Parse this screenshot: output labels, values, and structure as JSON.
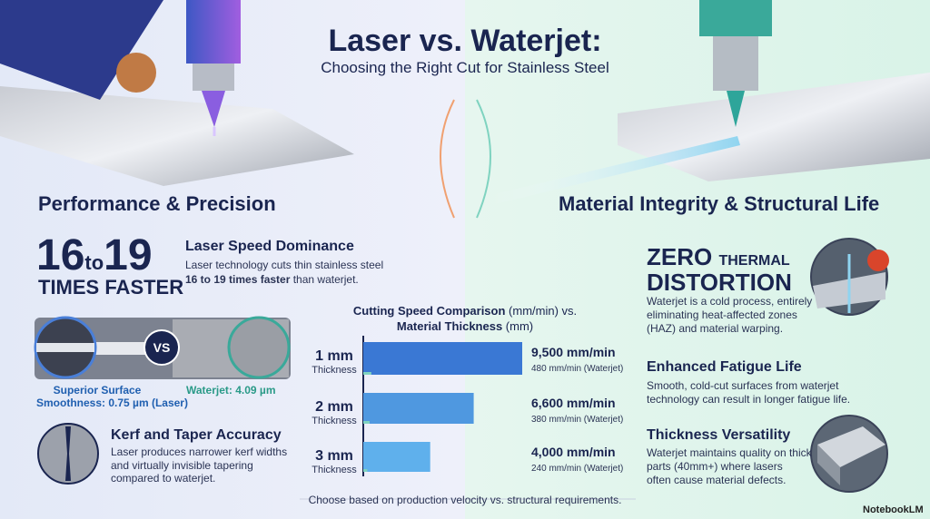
{
  "header": {
    "title": "Laser vs. Waterjet:",
    "subtitle": "Choosing the Right Cut for Stainless Steel"
  },
  "left": {
    "heading": "Performance & Precision",
    "stat": {
      "from": "16",
      "joiner": "to",
      "to": "19",
      "caption": "TIMES FASTER"
    },
    "speed": {
      "title": "Laser Speed Dominance",
      "line1": "Laser technology cuts thin stainless steel",
      "emphasis": "16 to 19 times faster",
      "line2_rest": " than waterjet."
    },
    "surface": {
      "vs": "VS",
      "laser_title": "Superior Surface",
      "laser_value": "Smoothness: 0.75 µm (Laser)",
      "waterjet_value": "Waterjet: 4.09 µm"
    },
    "kerf": {
      "title": "Kerf and Taper Accuracy",
      "lines": [
        "Laser produces narrower kerf widths",
        "and virtually invisible tapering",
        "compared to waterjet."
      ]
    }
  },
  "chart": {
    "type": "bar",
    "title_bold_1": "Cutting Speed Comparison",
    "title_rest_1": " (mm/min) vs.",
    "title_bold_2": "Material Thickness",
    "title_rest_2": " (mm)",
    "categories": [
      "1 mm",
      "2 mm",
      "3 mm"
    ],
    "category_note": "Thickness",
    "series": [
      {
        "name": "Laser",
        "colors": [
          "#3a78d4",
          "#4f98e0",
          "#5fb0ec"
        ],
        "values": [
          9500,
          6600,
          4000
        ],
        "value_labels": [
          "9,500 mm/min",
          "6,600 mm/min",
          "4,000 mm/min"
        ]
      },
      {
        "name": "Waterjet",
        "color": "#7fd3c0",
        "values": [
          480,
          380,
          240
        ],
        "value_labels": [
          "480 mm/min (Waterjet)",
          "380 mm/min (Waterjet)",
          "240 mm/min (Waterjet)"
        ]
      }
    ]
  },
  "footer": "Choose based on production velocity vs. structural requirements.",
  "right": {
    "heading": "Material Integrity & Structural Life",
    "zero": {
      "word": "ZERO",
      "thermal": "THERMAL",
      "distortion": "DISTORTION",
      "lines": [
        "Waterjet is a cold process, entirely",
        "eliminating heat-affected zones",
        "(HAZ) and material warping."
      ]
    },
    "fatigue": {
      "title": "Enhanced Fatigue Life",
      "lines": [
        "Smooth, cold-cut surfaces from waterjet",
        "technology can result in longer fatigue life."
      ]
    },
    "versatility": {
      "title": "Thickness Versatility",
      "lines": [
        "Waterjet maintains quality on thick",
        "parts (40mm+) where lasers",
        "often cause material defects."
      ]
    }
  },
  "brand": "NotebookLM"
}
